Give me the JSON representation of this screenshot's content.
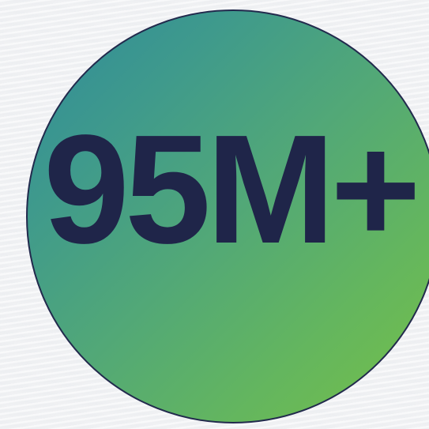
{
  "stat": {
    "value": "95M+"
  },
  "colors": {
    "circle_gradient_start": "#2f8b9a",
    "circle_gradient_end": "#76c047",
    "text": "#1f2549",
    "border": "#222a4d",
    "background": "#f1f2f4"
  }
}
